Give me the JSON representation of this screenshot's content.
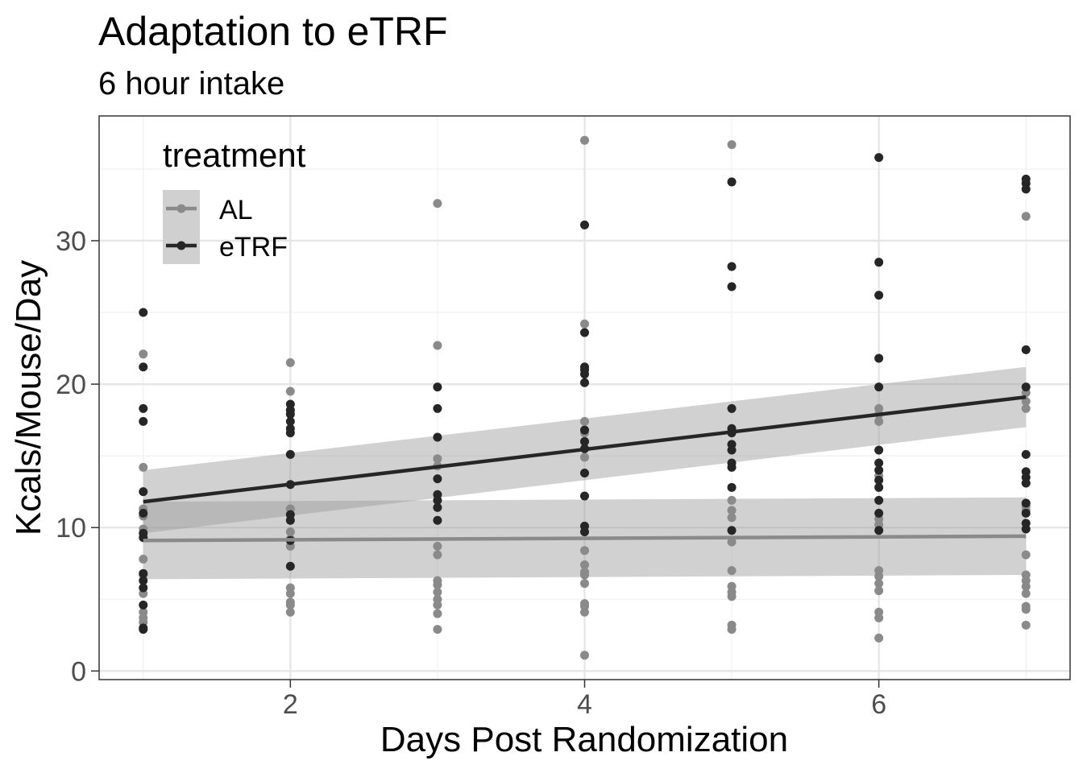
{
  "chart_data": {
    "type": "scatter",
    "title": "Adaptation to eTRF",
    "subtitle": "6 hour intake",
    "xlabel": "Days Post Randomization",
    "ylabel": "Kcals/Mouse/Day",
    "xlim": [
      0.7,
      7.3
    ],
    "ylim": [
      -0.6,
      38.7
    ],
    "x_ticks": [
      2,
      4,
      6
    ],
    "y_ticks": [
      0,
      10,
      20,
      30
    ],
    "grid": true,
    "legend": {
      "title": "treatment",
      "placement": "top-left inside"
    },
    "series": [
      {
        "name": "AL",
        "color": "#8a8a8a",
        "points": [
          [
            1,
            22.1
          ],
          [
            1,
            14.2
          ],
          [
            1,
            11.3
          ],
          [
            1,
            10.8
          ],
          [
            1,
            9.9
          ],
          [
            1,
            7.8
          ],
          [
            1,
            6.7
          ],
          [
            1,
            5.4
          ],
          [
            1,
            4.1
          ],
          [
            1,
            3.7
          ],
          [
            1,
            3.4
          ],
          [
            2,
            21.5
          ],
          [
            2,
            19.5
          ],
          [
            2,
            18.1
          ],
          [
            2,
            11.3
          ],
          [
            2,
            10.9
          ],
          [
            2,
            9.7
          ],
          [
            2,
            9.2
          ],
          [
            2,
            8.7
          ],
          [
            2,
            5.8
          ],
          [
            2,
            5.4
          ],
          [
            2,
            4.8
          ],
          [
            2,
            4.6
          ],
          [
            2,
            4.1
          ],
          [
            3,
            32.6
          ],
          [
            3,
            22.7
          ],
          [
            3,
            14.8
          ],
          [
            3,
            14.3
          ],
          [
            3,
            8.7
          ],
          [
            3,
            8.1
          ],
          [
            3,
            6.3
          ],
          [
            3,
            6.0
          ],
          [
            3,
            5.5
          ],
          [
            3,
            5.0
          ],
          [
            3,
            4.6
          ],
          [
            3,
            4.0
          ],
          [
            3,
            2.9
          ],
          [
            4,
            37.0
          ],
          [
            4,
            24.2
          ],
          [
            4,
            17.4
          ],
          [
            4,
            16.6
          ],
          [
            4,
            14.9
          ],
          [
            4,
            8.4
          ],
          [
            4,
            7.4
          ],
          [
            4,
            6.9
          ],
          [
            4,
            6.7
          ],
          [
            4,
            6.1
          ],
          [
            4,
            4.7
          ],
          [
            4,
            4.5
          ],
          [
            4,
            4.1
          ],
          [
            4,
            1.1
          ],
          [
            5,
            36.7
          ],
          [
            5,
            16.7
          ],
          [
            5,
            11.9
          ],
          [
            5,
            11.2
          ],
          [
            5,
            10.7
          ],
          [
            5,
            9.0
          ],
          [
            5,
            7.0
          ],
          [
            5,
            5.9
          ],
          [
            5,
            5.5
          ],
          [
            5,
            5.2
          ],
          [
            5,
            3.2
          ],
          [
            5,
            2.9
          ],
          [
            6,
            18.3
          ],
          [
            6,
            17.9
          ],
          [
            6,
            17.4
          ],
          [
            6,
            13.6
          ],
          [
            6,
            10.6
          ],
          [
            6,
            10.2
          ],
          [
            6,
            7.0
          ],
          [
            6,
            6.6
          ],
          [
            6,
            6.1
          ],
          [
            6,
            5.6
          ],
          [
            6,
            4.1
          ],
          [
            6,
            3.7
          ],
          [
            6,
            2.3
          ],
          [
            7,
            31.7
          ],
          [
            7,
            19.4
          ],
          [
            7,
            18.8
          ],
          [
            7,
            18.3
          ],
          [
            7,
            13.1
          ],
          [
            7,
            11.5
          ],
          [
            7,
            11.2
          ],
          [
            7,
            8.1
          ],
          [
            7,
            6.7
          ],
          [
            7,
            6.3
          ],
          [
            7,
            5.9
          ],
          [
            7,
            5.4
          ],
          [
            7,
            4.5
          ],
          [
            7,
            4.3
          ],
          [
            7,
            3.2
          ]
        ],
        "fit": {
          "start": 9.1,
          "end": 9.4,
          "ci_lower": [
            6.4,
            6.7
          ],
          "ci_upper": [
            11.8,
            12.1
          ]
        }
      },
      {
        "name": "eTRF",
        "color": "#262626",
        "points": [
          [
            1,
            25.0
          ],
          [
            1,
            21.2
          ],
          [
            1,
            18.3
          ],
          [
            1,
            17.4
          ],
          [
            1,
            12.5
          ],
          [
            1,
            11.0
          ],
          [
            1,
            9.6
          ],
          [
            1,
            9.3
          ],
          [
            1,
            6.8
          ],
          [
            1,
            6.3
          ],
          [
            1,
            5.8
          ],
          [
            1,
            4.6
          ],
          [
            1,
            3.0
          ],
          [
            1,
            2.9
          ],
          [
            2,
            18.6
          ],
          [
            2,
            18.2
          ],
          [
            2,
            17.9
          ],
          [
            2,
            17.4
          ],
          [
            2,
            16.9
          ],
          [
            2,
            16.6
          ],
          [
            2,
            15.1
          ],
          [
            2,
            13.0
          ],
          [
            2,
            10.9
          ],
          [
            2,
            10.5
          ],
          [
            2,
            9.1
          ],
          [
            2,
            7.3
          ],
          [
            3,
            19.8
          ],
          [
            3,
            18.3
          ],
          [
            3,
            16.3
          ],
          [
            3,
            13.4
          ],
          [
            3,
            12.3
          ],
          [
            3,
            11.9
          ],
          [
            3,
            11.4
          ],
          [
            3,
            10.5
          ],
          [
            4,
            31.1
          ],
          [
            4,
            23.6
          ],
          [
            4,
            21.2
          ],
          [
            4,
            21.0
          ],
          [
            4,
            20.7
          ],
          [
            4,
            20.1
          ],
          [
            4,
            16.8
          ],
          [
            4,
            16.0
          ],
          [
            4,
            15.5
          ],
          [
            4,
            13.8
          ],
          [
            4,
            12.2
          ],
          [
            4,
            10.1
          ],
          [
            4,
            9.7
          ],
          [
            5,
            34.1
          ],
          [
            5,
            28.2
          ],
          [
            5,
            26.8
          ],
          [
            5,
            18.3
          ],
          [
            5,
            16.9
          ],
          [
            5,
            16.6
          ],
          [
            5,
            15.8
          ],
          [
            5,
            15.4
          ],
          [
            5,
            14.5
          ],
          [
            5,
            14.2
          ],
          [
            5,
            12.8
          ],
          [
            5,
            9.8
          ],
          [
            6,
            35.8
          ],
          [
            6,
            28.5
          ],
          [
            6,
            26.2
          ],
          [
            6,
            21.8
          ],
          [
            6,
            19.8
          ],
          [
            6,
            15.4
          ],
          [
            6,
            14.5
          ],
          [
            6,
            14.0
          ],
          [
            6,
            13.3
          ],
          [
            6,
            12.8
          ],
          [
            6,
            11.9
          ],
          [
            6,
            11.0
          ],
          [
            6,
            9.8
          ],
          [
            7,
            34.3
          ],
          [
            7,
            34.0
          ],
          [
            7,
            33.6
          ],
          [
            7,
            22.4
          ],
          [
            7,
            19.8
          ],
          [
            7,
            15.1
          ],
          [
            7,
            13.9
          ],
          [
            7,
            13.5
          ],
          [
            7,
            13.1
          ],
          [
            7,
            11.7
          ],
          [
            7,
            11.0
          ],
          [
            7,
            10.3
          ],
          [
            7,
            9.9
          ]
        ],
        "fit": {
          "start": 11.8,
          "end": 19.1,
          "ci_lower": [
            9.6,
            17.0
          ],
          "ci_upper": [
            14.0,
            21.2
          ]
        }
      }
    ]
  }
}
